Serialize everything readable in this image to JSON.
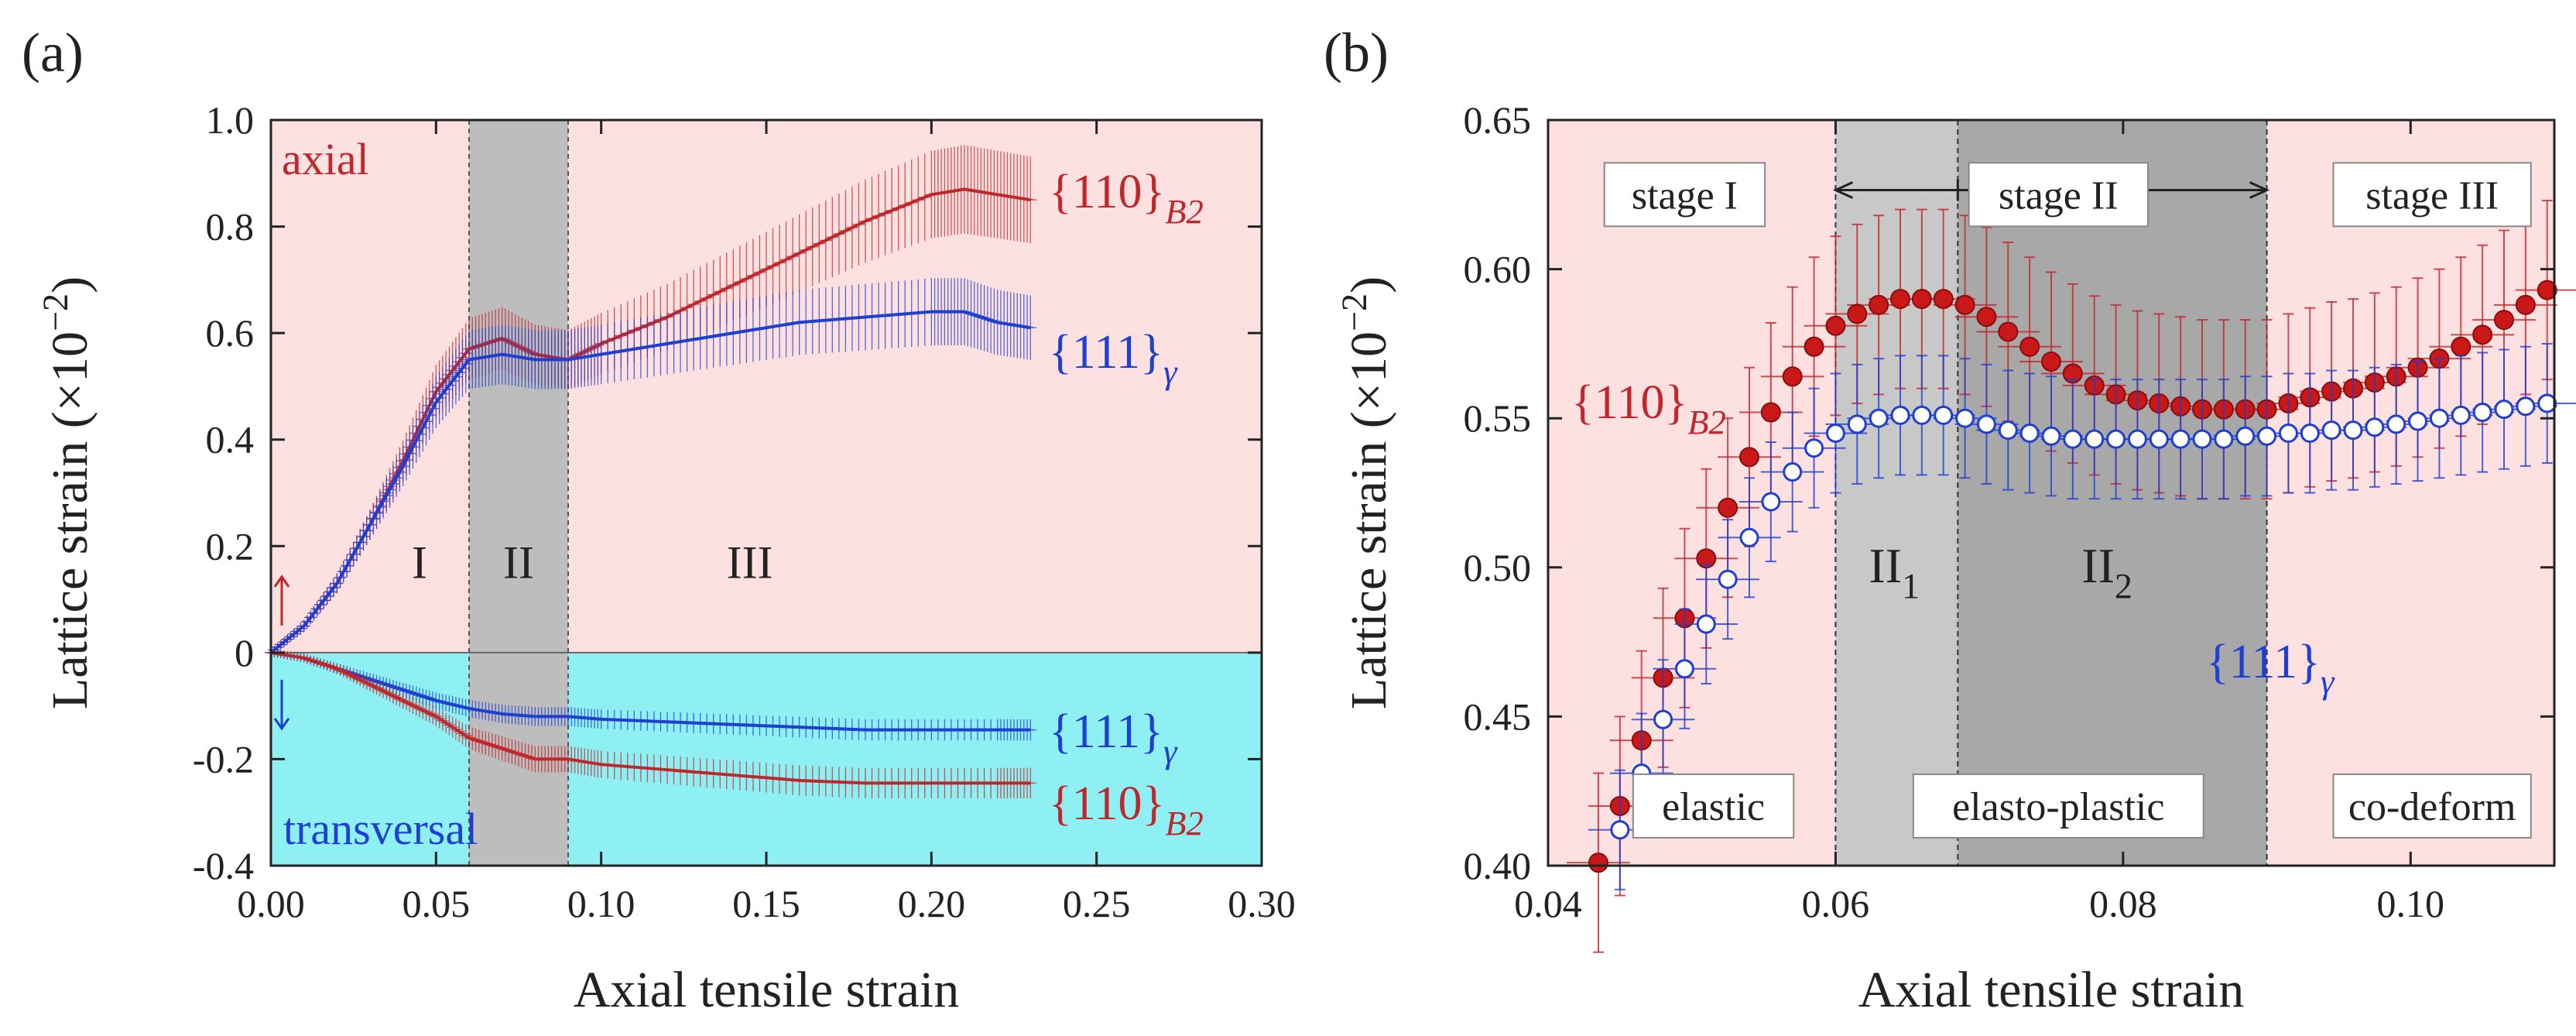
{
  "panels": {
    "a": {
      "label": "(a)"
    },
    "b": {
      "label": "(b)"
    }
  },
  "chart_data": [
    {
      "type": "line",
      "panel": "(a)",
      "xlabel": "Axial tensile strain",
      "ylabel": "Lattice strain (×10",
      "ylabel_sup": "−2",
      "ylabel_close": ")",
      "xlim": [
        0,
        0.3
      ],
      "ylim": [
        -0.4,
        1.0
      ],
      "xticks": [
        0.0,
        0.05,
        0.1,
        0.15,
        0.2,
        0.25,
        0.3
      ],
      "xtick_labels": [
        "0.00",
        "0.05",
        "0.10",
        "0.15",
        "0.20",
        "0.25",
        "0.30"
      ],
      "yticks": [
        -0.4,
        -0.2,
        0,
        0.2,
        0.4,
        0.6,
        0.8,
        1.0
      ],
      "ytick_labels": [
        "-0.4",
        "-0.2",
        "0",
        "0.2",
        "0.4",
        "0.6",
        "0.8",
        "1.0"
      ],
      "regions": [
        {
          "name": "axial",
          "y_from": 0,
          "y_to": 1.0,
          "color": "#fde0e0",
          "label": "axial",
          "label_color": "#c0272d"
        },
        {
          "name": "transversal",
          "y_from": -0.4,
          "y_to": 0,
          "color": "#8ff0f4",
          "label": "transversal",
          "label_color": "#1f3fd0"
        }
      ],
      "band": {
        "x_from": 0.06,
        "x_to": 0.09,
        "color": "#bdbdbd"
      },
      "stage_labels": [
        {
          "text": "I",
          "x": 0.045,
          "y": 0.14
        },
        {
          "text": "II",
          "x": 0.075,
          "y": 0.14
        },
        {
          "text": "III",
          "x": 0.145,
          "y": 0.14
        }
      ],
      "series": [
        {
          "name": "{110}B2 axial",
          "label_main": "{110}",
          "label_sub": "B2",
          "color": "#c0272d",
          "x": [
            0,
            0.01,
            0.02,
            0.03,
            0.04,
            0.05,
            0.06,
            0.07,
            0.08,
            0.09,
            0.1,
            0.12,
            0.14,
            0.16,
            0.18,
            0.2,
            0.21,
            0.22,
            0.23
          ],
          "y": [
            0,
            0.05,
            0.13,
            0.24,
            0.36,
            0.49,
            0.57,
            0.59,
            0.56,
            0.55,
            0.58,
            0.63,
            0.69,
            0.75,
            0.81,
            0.86,
            0.87,
            0.86,
            0.85
          ]
        },
        {
          "name": "{111}γ axial",
          "label_main": "{111}",
          "label_sub": "γ",
          "color": "#1f3fd0",
          "x": [
            0,
            0.01,
            0.02,
            0.03,
            0.04,
            0.05,
            0.06,
            0.07,
            0.08,
            0.09,
            0.1,
            0.12,
            0.14,
            0.16,
            0.18,
            0.2,
            0.21,
            0.22,
            0.23
          ],
          "y": [
            0,
            0.05,
            0.13,
            0.24,
            0.35,
            0.47,
            0.55,
            0.56,
            0.55,
            0.55,
            0.56,
            0.58,
            0.6,
            0.62,
            0.63,
            0.64,
            0.64,
            0.62,
            0.61
          ]
        },
        {
          "name": "{111}γ transversal",
          "label_main": "{111}",
          "label_sub": "γ",
          "color": "#1f3fd0",
          "x": [
            0,
            0.01,
            0.02,
            0.03,
            0.04,
            0.05,
            0.06,
            0.07,
            0.08,
            0.09,
            0.1,
            0.12,
            0.14,
            0.16,
            0.18,
            0.2,
            0.22,
            0.23
          ],
          "y": [
            0,
            -0.01,
            -0.03,
            -0.05,
            -0.07,
            -0.09,
            -0.105,
            -0.115,
            -0.12,
            -0.12,
            -0.125,
            -0.13,
            -0.135,
            -0.14,
            -0.145,
            -0.145,
            -0.145,
            -0.145
          ]
        },
        {
          "name": "{110}B2 transversal",
          "label_main": "{110}",
          "label_sub": "B2",
          "color": "#c0272d",
          "x": [
            0,
            0.01,
            0.02,
            0.03,
            0.04,
            0.05,
            0.06,
            0.07,
            0.08,
            0.09,
            0.1,
            0.12,
            0.14,
            0.16,
            0.18,
            0.2,
            0.22,
            0.23
          ],
          "y": [
            0,
            -0.01,
            -0.03,
            -0.06,
            -0.09,
            -0.12,
            -0.16,
            -0.18,
            -0.2,
            -0.2,
            -0.21,
            -0.22,
            -0.23,
            -0.24,
            -0.245,
            -0.245,
            -0.245,
            -0.245
          ]
        }
      ]
    },
    {
      "type": "scatter",
      "panel": "(b)",
      "xlabel": "Axial tensile strain",
      "ylabel": "Lattice strain (×10",
      "ylabel_sup": "−2",
      "ylabel_close": ")",
      "xlim": [
        0.04,
        0.11
      ],
      "ylim": [
        0.4,
        0.65
      ],
      "xticks": [
        0.04,
        0.06,
        0.08,
        0.1
      ],
      "xtick_labels": [
        "0.04",
        "0.06",
        "0.08",
        "0.10"
      ],
      "yticks": [
        0.4,
        0.45,
        0.5,
        0.55,
        0.6,
        0.65
      ],
      "ytick_labels": [
        "0.40",
        "0.45",
        "0.50",
        "0.55",
        "0.60",
        "0.65"
      ],
      "bands": [
        {
          "x_from": 0.04,
          "x_to": 0.06,
          "color": "#fde0e0"
        },
        {
          "x_from": 0.06,
          "x_to": 0.0685,
          "color": "#c8c8c8"
        },
        {
          "x_from": 0.0685,
          "x_to": 0.09,
          "color": "#a8a8a8"
        },
        {
          "x_from": 0.09,
          "x_to": 0.11,
          "color": "#fde0e0"
        }
      ],
      "boundaries": [
        0.06,
        0.0685,
        0.09
      ],
      "stage_boxes": [
        {
          "text": "stage I",
          "x": 0.0495,
          "y": 0.625
        },
        {
          "text": "stage II",
          "x": 0.0755,
          "y": 0.625
        },
        {
          "text": "stage III",
          "x": 0.1015,
          "y": 0.625
        }
      ],
      "bottom_boxes": [
        {
          "text": "elastic",
          "x": 0.0515,
          "y": 0.42
        },
        {
          "text": "elasto-plastic",
          "x": 0.0755,
          "y": 0.42
        },
        {
          "text": "co-deform",
          "x": 0.1015,
          "y": 0.42
        }
      ],
      "sub_stage_labels": [
        {
          "main": "II",
          "sub": "1",
          "x": 0.0642,
          "y": 0.495
        },
        {
          "main": "II",
          "sub": "2",
          "x": 0.079,
          "y": 0.495
        }
      ],
      "arrow": {
        "x_from": 0.06,
        "x_to": 0.09,
        "y": 0.6265
      },
      "series": [
        {
          "name": "{110}B2",
          "label_main": "{110}",
          "label_sub": "B2",
          "color": "#c0272d",
          "marker": "filled",
          "x": [
            0.0435,
            0.045,
            0.0465,
            0.048,
            0.0495,
            0.051,
            0.0525,
            0.054,
            0.0555,
            0.057,
            0.0585,
            0.06,
            0.0615,
            0.063,
            0.0645,
            0.066,
            0.0675,
            0.069,
            0.0705,
            0.072,
            0.0735,
            0.075,
            0.0765,
            0.078,
            0.0795,
            0.081,
            0.0825,
            0.084,
            0.0855,
            0.087,
            0.0885,
            0.09,
            0.0915,
            0.093,
            0.0945,
            0.096,
            0.0975,
            0.099,
            0.1005,
            0.102,
            0.1035,
            0.105,
            0.1065,
            0.108,
            0.1095
          ],
          "y": [
            0.401,
            0.42,
            0.442,
            0.463,
            0.483,
            0.503,
            0.52,
            0.537,
            0.552,
            0.564,
            0.574,
            0.581,
            0.585,
            0.588,
            0.59,
            0.59,
            0.59,
            0.588,
            0.584,
            0.579,
            0.574,
            0.569,
            0.565,
            0.561,
            0.558,
            0.556,
            0.555,
            0.554,
            0.553,
            0.553,
            0.553,
            0.553,
            0.555,
            0.557,
            0.559,
            0.56,
            0.562,
            0.564,
            0.567,
            0.57,
            0.574,
            0.578,
            0.583,
            0.588,
            0.593
          ],
          "yerr": 0.03
        },
        {
          "name": "{111}γ",
          "label_main": "{111}",
          "label_sub": "γ",
          "color": "#1f3fd0",
          "marker": "open",
          "x": [
            0.045,
            0.0465,
            0.048,
            0.0495,
            0.051,
            0.0525,
            0.054,
            0.0555,
            0.057,
            0.0585,
            0.06,
            0.0615,
            0.063,
            0.0645,
            0.066,
            0.0675,
            0.069,
            0.0705,
            0.072,
            0.0735,
            0.075,
            0.0765,
            0.078,
            0.0795,
            0.081,
            0.0825,
            0.084,
            0.0855,
            0.087,
            0.0885,
            0.09,
            0.0915,
            0.093,
            0.0945,
            0.096,
            0.0975,
            0.099,
            0.1005,
            0.102,
            0.1035,
            0.105,
            0.1065,
            0.108,
            0.1095
          ],
          "y": [
            0.412,
            0.431,
            0.449,
            0.466,
            0.481,
            0.496,
            0.51,
            0.522,
            0.532,
            0.54,
            0.545,
            0.548,
            0.55,
            0.551,
            0.551,
            0.551,
            0.55,
            0.548,
            0.546,
            0.545,
            0.544,
            0.543,
            0.543,
            0.543,
            0.543,
            0.543,
            0.543,
            0.543,
            0.543,
            0.544,
            0.544,
            0.545,
            0.545,
            0.546,
            0.546,
            0.547,
            0.548,
            0.549,
            0.55,
            0.551,
            0.552,
            0.553,
            0.554,
            0.555
          ],
          "yerr": 0.02
        }
      ]
    }
  ]
}
